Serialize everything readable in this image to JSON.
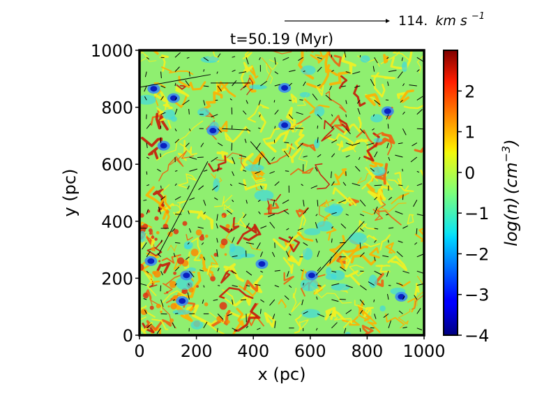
{
  "chart_data": {
    "type": "heatmap",
    "title": "t=50.19 (Myr)",
    "xlabel": "x (pc)",
    "ylabel": "y (pc)",
    "xlim": [
      0,
      1000
    ],
    "ylim": [
      0,
      1000
    ],
    "x_ticks": [
      "0",
      "200",
      "400",
      "600",
      "800",
      "1000"
    ],
    "y_ticks": [
      "0",
      "200",
      "400",
      "600",
      "800",
      "1000"
    ],
    "colorbar": {
      "label_log": "log",
      "label_n": "(n)",
      "label_unit": "(cm",
      "label_exp": "−3",
      "label_close": ")",
      "range": [
        -4,
        3
      ],
      "ticks": [
        "−4",
        "−3",
        "−2",
        "−1",
        "0",
        "1",
        "2"
      ],
      "colormap": "jet"
    },
    "quiver_key": {
      "value": "114.",
      "unit": "km s",
      "exp": "−1"
    },
    "field_description_colors": {
      "background": "#8fef70",
      "dense": "#e03010",
      "void": "#0a20c0"
    }
  }
}
